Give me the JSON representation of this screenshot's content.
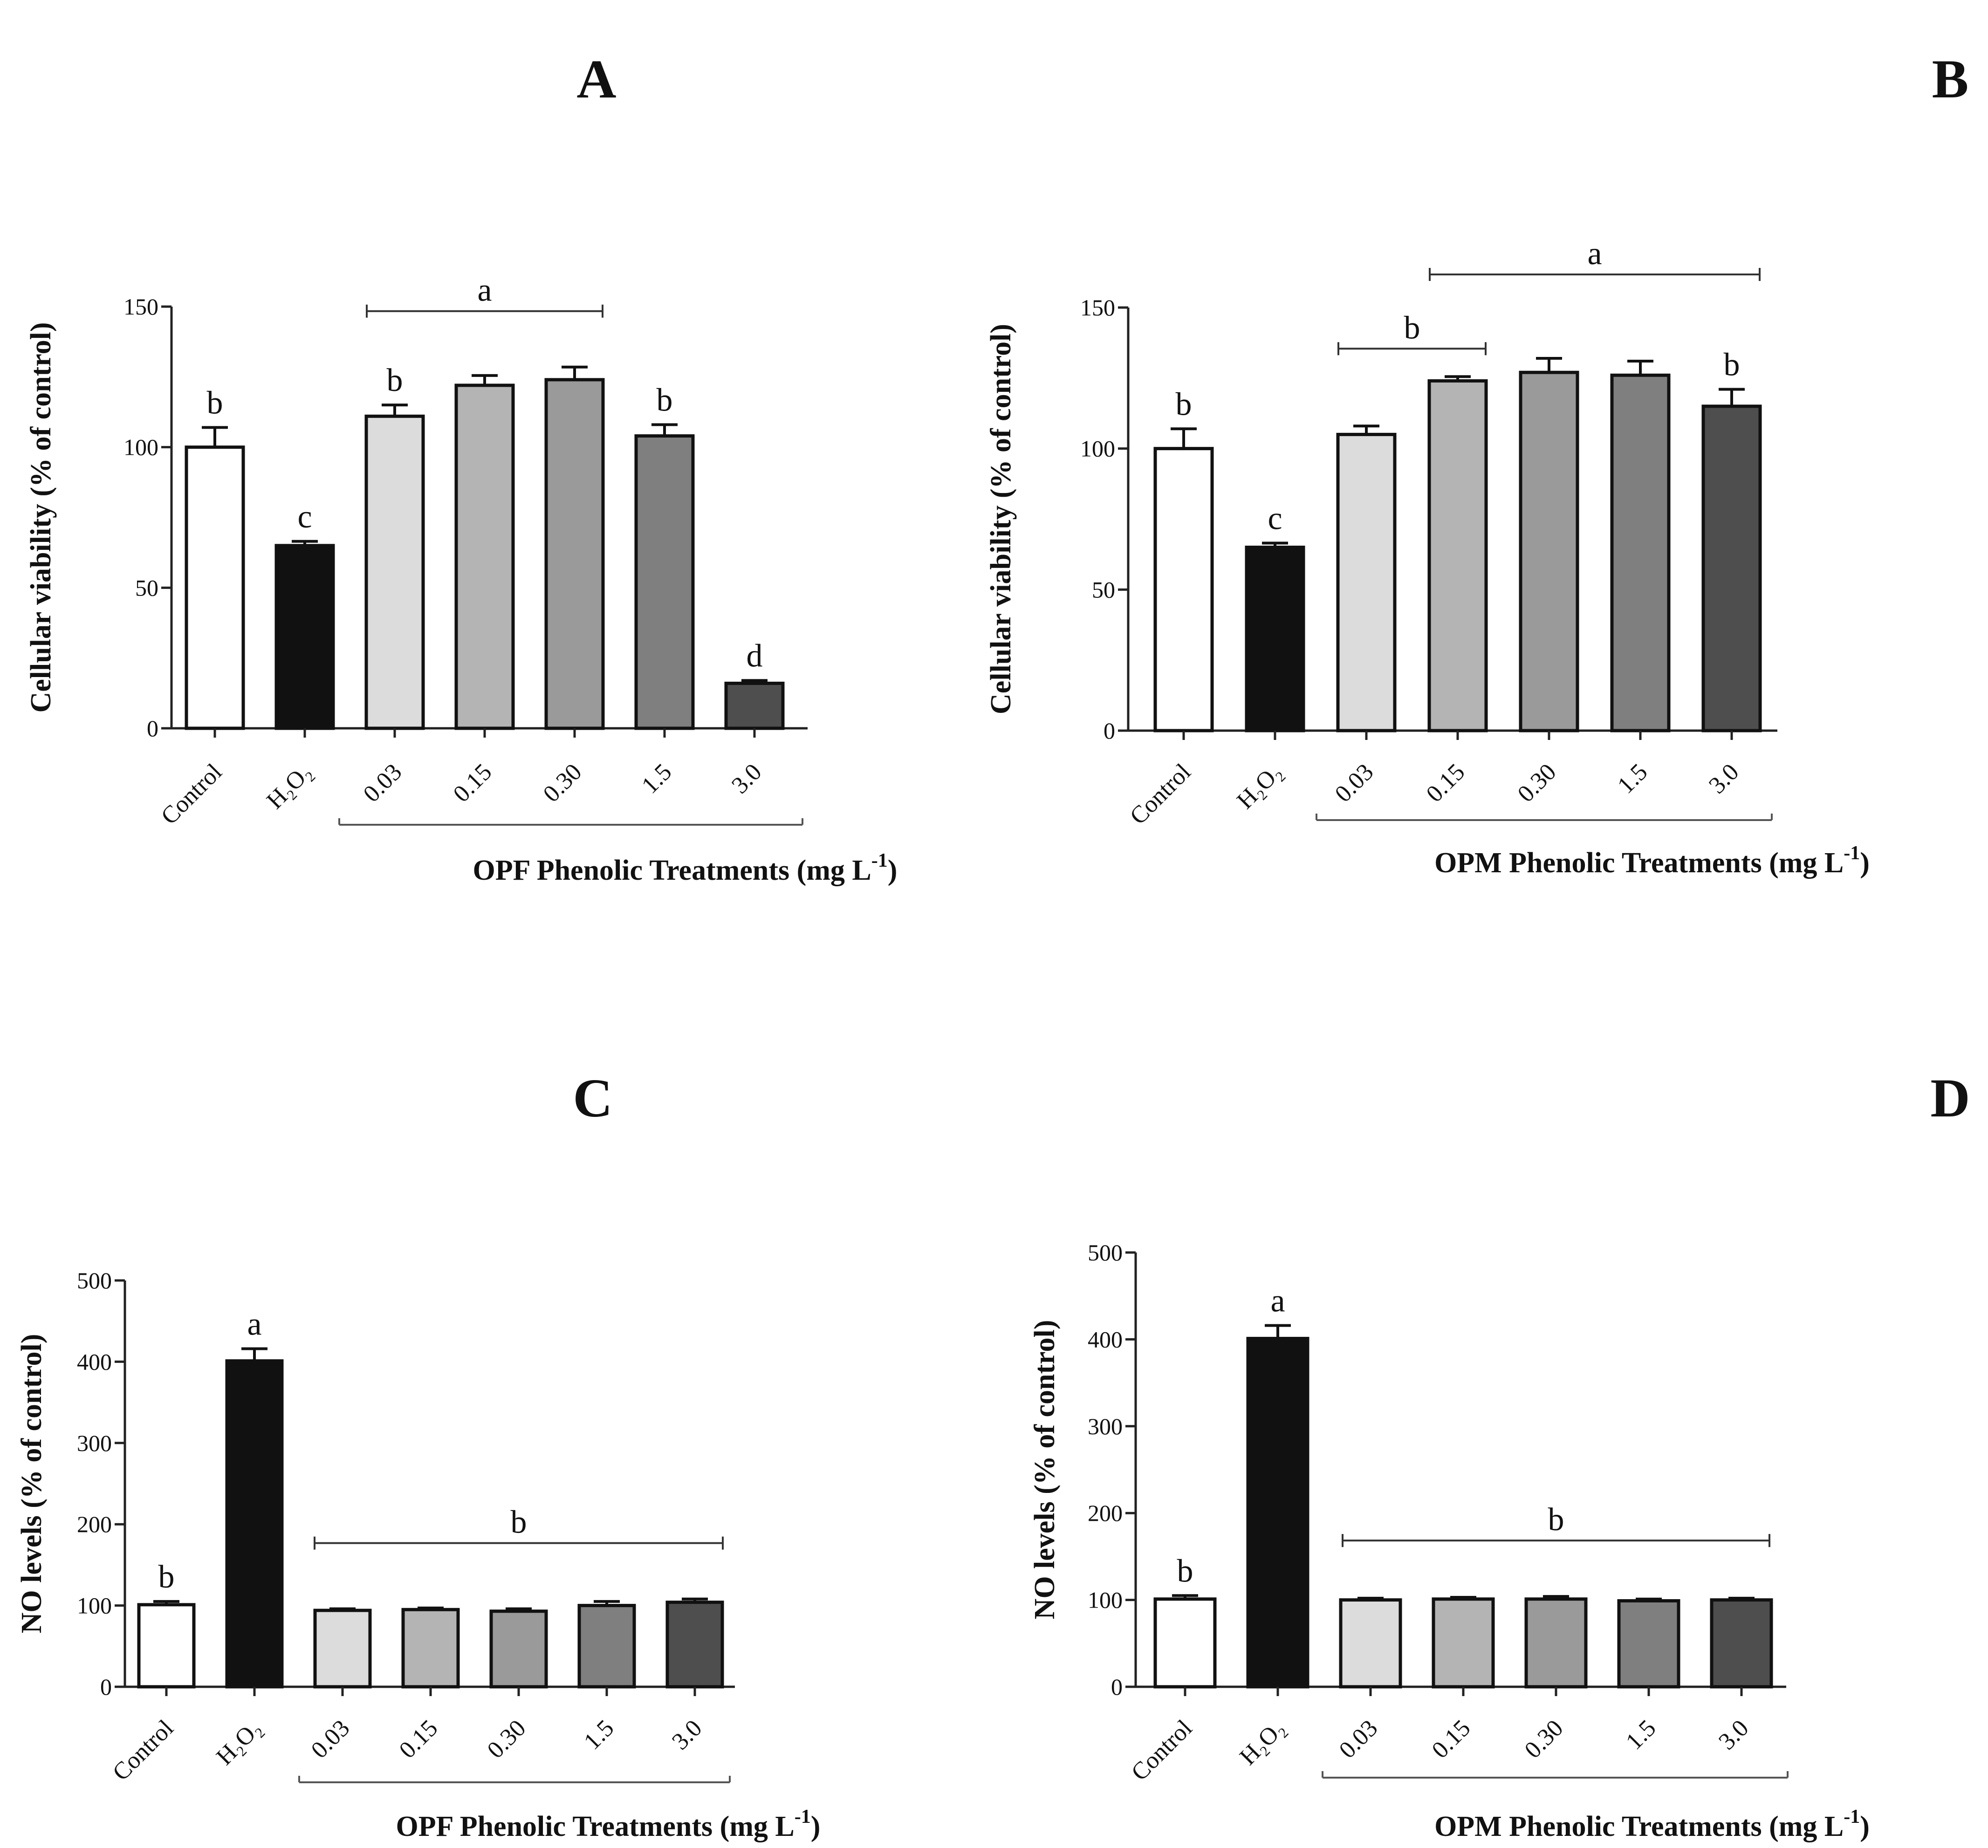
{
  "chart_data": [
    {
      "id": "A",
      "type": "bar",
      "panel_label": "A",
      "ylabel": "Cellular viability (% of control)",
      "xlabel": "OPF Phenolic Treatments (mg L",
      "xlabel_sup": "-1",
      "xlabel_end": ")",
      "ylim": [
        0,
        150
      ],
      "yticks": [
        0,
        50,
        100,
        150
      ],
      "categories": [
        "Control",
        "H₂O₂",
        "0.03",
        "0.15",
        "0.30",
        "1.5",
        "3.0"
      ],
      "values": [
        100,
        65,
        111,
        122,
        124,
        104,
        16
      ],
      "errors": [
        7,
        1.5,
        4,
        3.5,
        4.5,
        4,
        1
      ],
      "colors": [
        "#ffffff",
        "#111111",
        "#dcdcdc",
        "#b4b4b4",
        "#9a9a9a",
        "#7f7f7f",
        "#4e4e4e"
      ],
      "letters": [
        "b",
        "c",
        "b",
        "",
        "",
        "b",
        "d"
      ],
      "brackets": [
        {
          "from": 2,
          "to": 4,
          "letter": "a"
        }
      ]
    },
    {
      "id": "B",
      "type": "bar",
      "panel_label": "B",
      "ylabel": "Cellular viability (% of control)",
      "xlabel": "OPM Phenolic Treatments (mg L",
      "xlabel_sup": "-1",
      "xlabel_end": ")",
      "ylim": [
        0,
        150
      ],
      "yticks": [
        0,
        50,
        100,
        150
      ],
      "categories": [
        "Control",
        "H₂O₂",
        "0.03",
        "0.15",
        "0.30",
        "1.5",
        "3.0"
      ],
      "values": [
        100,
        65,
        105,
        124,
        127,
        126,
        115
      ],
      "errors": [
        7,
        1.5,
        3,
        1.5,
        5,
        5,
        6
      ],
      "colors": [
        "#ffffff",
        "#111111",
        "#dcdcdc",
        "#b4b4b4",
        "#9a9a9a",
        "#7f7f7f",
        "#4e4e4e"
      ],
      "letters": [
        "b",
        "c",
        "",
        "",
        "",
        "",
        "b"
      ],
      "brackets": [
        {
          "from": 2,
          "to": 3,
          "letter": "b"
        },
        {
          "from": 3,
          "to": 6,
          "letter": "a"
        }
      ]
    },
    {
      "id": "C",
      "type": "bar",
      "panel_label": "C",
      "ylabel": "NO levels (% of control)",
      "xlabel": "OPF Phenolic Treatments (mg L",
      "xlabel_sup": "-1",
      "xlabel_end": ")",
      "ylim": [
        0,
        500
      ],
      "yticks": [
        0,
        100,
        200,
        300,
        400,
        500
      ],
      "categories": [
        "Control",
        "H₂O₂",
        "0.03",
        "0.15",
        "0.30",
        "1.5",
        "3.0"
      ],
      "values": [
        101,
        401,
        94,
        95,
        93,
        100,
        104
      ],
      "errors": [
        4,
        15,
        2,
        2,
        3,
        5,
        4
      ],
      "colors": [
        "#ffffff",
        "#111111",
        "#dcdcdc",
        "#b4b4b4",
        "#9a9a9a",
        "#7f7f7f",
        "#4e4e4e"
      ],
      "letters": [
        "b",
        "a",
        "",
        "",
        "",
        "",
        ""
      ],
      "brackets": [
        {
          "from": 2,
          "to": 6,
          "letter": "b"
        }
      ]
    },
    {
      "id": "D",
      "type": "bar",
      "panel_label": "D",
      "ylabel": "NO levels (% of control)",
      "xlabel": "OPM Phenolic Treatments (mg L",
      "xlabel_sup": "-1",
      "xlabel_end": ")",
      "ylim": [
        0,
        500
      ],
      "yticks": [
        0,
        100,
        200,
        300,
        400,
        500
      ],
      "categories": [
        "Control",
        "H₂O₂",
        "0.03",
        "0.15",
        "0.30",
        "1.5",
        "3.0"
      ],
      "values": [
        101,
        401,
        100,
        101,
        101,
        99,
        100
      ],
      "errors": [
        4,
        15,
        2,
        2,
        3,
        2,
        2
      ],
      "colors": [
        "#ffffff",
        "#111111",
        "#dcdcdc",
        "#b4b4b4",
        "#9a9a9a",
        "#7f7f7f",
        "#4e4e4e"
      ],
      "letters": [
        "b",
        "a",
        "",
        "",
        "",
        "",
        ""
      ],
      "brackets": [
        {
          "from": 2,
          "to": 6,
          "letter": "b"
        }
      ]
    }
  ]
}
